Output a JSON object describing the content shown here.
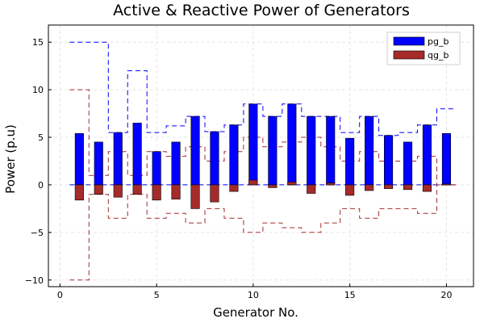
{
  "chart_data": {
    "type": "bar",
    "title": "Active & Reactive Power of Generators",
    "xlabel": "Generator No.",
    "ylabel": "Power (p.u)",
    "xlim": [
      -0.6,
      21.4
    ],
    "ylim": [
      -10.7,
      16.8
    ],
    "xticks": [
      0,
      5,
      10,
      15,
      20
    ],
    "yticks": [
      -10,
      -5,
      0,
      5,
      10,
      15
    ],
    "grid": true,
    "legend_position": "top-right",
    "x": [
      1,
      2,
      3,
      4,
      5,
      6,
      7,
      8,
      9,
      10,
      11,
      12,
      13,
      14,
      15,
      16,
      17,
      18,
      19,
      20
    ],
    "series": [
      {
        "name": "pg_b",
        "color": "#0000ff",
        "values": [
          5.4,
          4.5,
          5.5,
          6.5,
          3.5,
          4.5,
          7.2,
          5.6,
          6.3,
          8.5,
          7.2,
          8.5,
          7.2,
          7.2,
          4.9,
          7.2,
          5.2,
          4.5,
          6.3,
          5.4
        ]
      },
      {
        "name": "qg_b",
        "color": "#a52a2a",
        "values": [
          -1.6,
          -1.0,
          -1.3,
          -1.0,
          -1.6,
          -1.5,
          -2.5,
          -1.8,
          -0.7,
          0.5,
          -0.3,
          0.3,
          -0.9,
          0.2,
          -1.1,
          -0.6,
          -0.4,
          -0.5,
          -0.7,
          0.1
        ]
      }
    ],
    "limits": {
      "pg_max": [
        15,
        15,
        5.5,
        12,
        5.5,
        6.2,
        7.2,
        5.6,
        6.3,
        8.5,
        7.2,
        8.5,
        7.2,
        7.2,
        5.5,
        7.2,
        5.2,
        5.5,
        6.3,
        8.0
      ],
      "pg_min": [
        0,
        0,
        0,
        0,
        0,
        0,
        0,
        0,
        0,
        0,
        0,
        0,
        0,
        0,
        0,
        0,
        0,
        0,
        0,
        0
      ],
      "qg_max": [
        10,
        1,
        3.5,
        1,
        3.5,
        3,
        4,
        2.5,
        3.5,
        5,
        4,
        4.5,
        5,
        4,
        2.5,
        3.5,
        2.5,
        2.5,
        3,
        0
      ],
      "qg_min": [
        -10,
        -1,
        -3.5,
        -1,
        -3.5,
        -3,
        -4,
        -2.5,
        -3.5,
        -5,
        -4,
        -4.5,
        -5,
        -4,
        -2.5,
        -3.5,
        -2.5,
        -2.5,
        -3,
        0
      ]
    }
  }
}
